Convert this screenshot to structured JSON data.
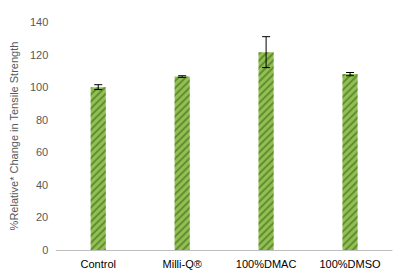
{
  "chart_data": {
    "type": "bar",
    "y_label": "%Relative* Change in Tensile Strength",
    "categories": [
      "Control",
      "Milli-Q®",
      "100%DMAC",
      "100%DMSO"
    ],
    "values": [
      100,
      106.5,
      121.5,
      108
    ],
    "errors": [
      1.5,
      0.5,
      9.5,
      1
    ],
    "color": "#92c050",
    "ylim": [
      0,
      140
    ],
    "yticks": [
      0,
      20,
      40,
      60,
      80,
      100,
      120,
      140
    ],
    "grid": false
  }
}
